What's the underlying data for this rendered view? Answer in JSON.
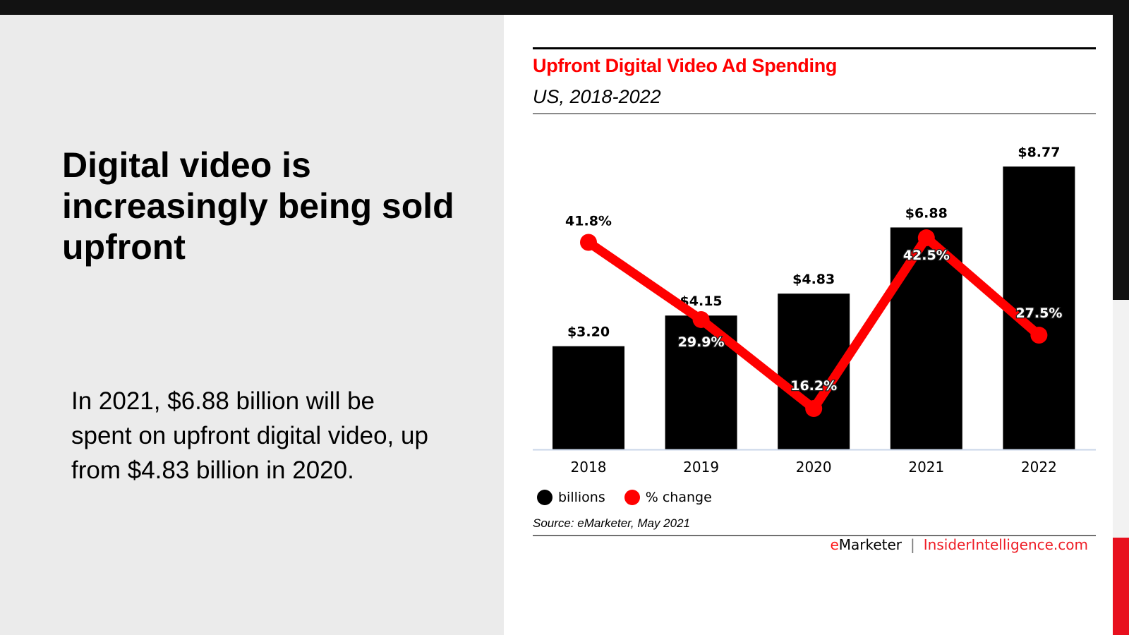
{
  "slide": {
    "headline": "Digital video is increasingly being sold upfront",
    "body": "In 2021, $6.88 billion will be spent on upfront digital video, up from $4.83 billion in 2020."
  },
  "colors": {
    "accent_red": "#ff0000",
    "bar_black": "#000000",
    "line_red": "#ff0000",
    "brand_red": "#ee1c25"
  },
  "chart_data": {
    "type": "bar",
    "title": "Upfront Digital Video Ad Spending",
    "subtitle": "US, 2018-2022",
    "categories": [
      "2018",
      "2019",
      "2020",
      "2021",
      "2022"
    ],
    "series": [
      {
        "name": "billions",
        "type": "bar",
        "values": [
          3.2,
          4.15,
          4.83,
          6.88,
          8.77
        ],
        "labels": [
          "$3.20",
          "$4.15",
          "$4.83",
          "$6.88",
          "$8.77"
        ],
        "color": "#000000"
      },
      {
        "name": "% change",
        "type": "line",
        "values": [
          41.8,
          29.9,
          16.2,
          42.5,
          27.5
        ],
        "labels": [
          "41.8%",
          "29.9%",
          "16.2%",
          "42.5%",
          "27.5%"
        ],
        "color": "#ff0000"
      }
    ],
    "xlabel": "",
    "ylabel": "",
    "grid": false,
    "legend": "bottom-left",
    "source": "Source: eMarketer, May 2021"
  },
  "footer": {
    "brand_e": "e",
    "brand_rest": "Marketer",
    "separator": "|",
    "site": "InsiderIntelligence.com"
  }
}
